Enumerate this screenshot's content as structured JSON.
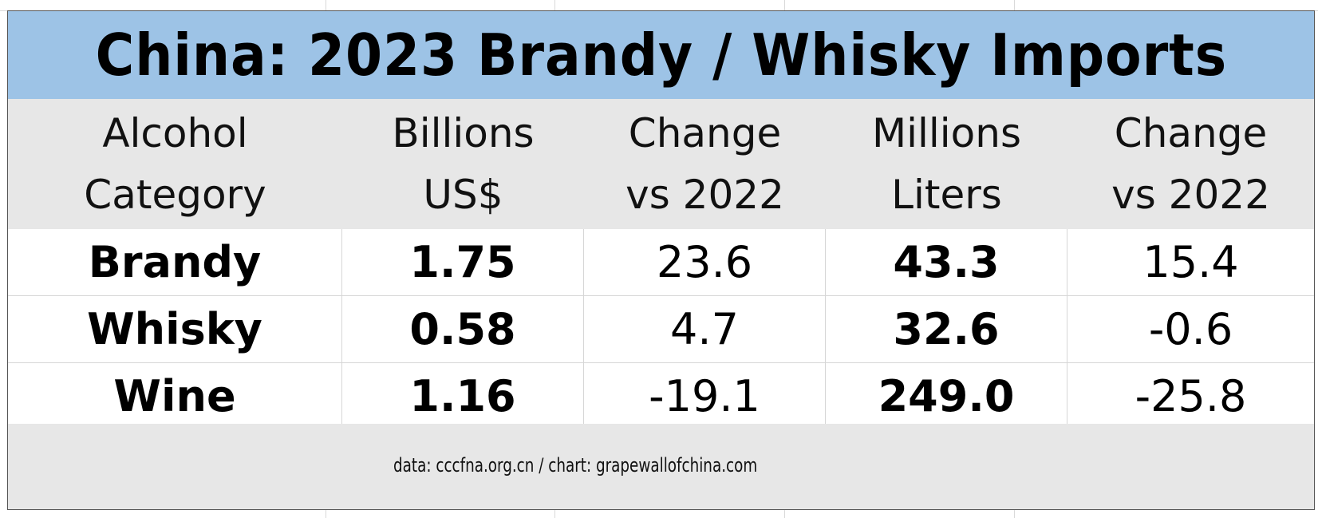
{
  "title": "China: 2023 Brandy / Whisky Imports",
  "colors": {
    "title_bg": "#9dc3e6",
    "header_bg": "#e7e7e7",
    "footer_bg": "#e7e7e7"
  },
  "headers": [
    {
      "line1": "Alcohol",
      "line2": "Category"
    },
    {
      "line1": "Billions",
      "line2": "US$"
    },
    {
      "line1": "Change",
      "line2": "vs 2022"
    },
    {
      "line1": "Millions",
      "line2": "Liters"
    },
    {
      "line1": "Change",
      "line2": "vs 2022"
    }
  ],
  "rows": [
    {
      "category": "Brandy",
      "usd": "1.75",
      "usd_change": "23.6",
      "liters": "43.3",
      "liters_change": "15.4"
    },
    {
      "category": "Whisky",
      "usd": "0.58",
      "usd_change": "4.7",
      "liters": "32.6",
      "liters_change": "-0.6"
    },
    {
      "category": "Wine",
      "usd": "1.16",
      "usd_change": "-19.1",
      "liters": "249.0",
      "liters_change": "-25.8"
    }
  ],
  "source": "data: cccfna.org.cn / chart: grapewallofchina.com",
  "chart_data": {
    "type": "table",
    "title": "China: 2023 Brandy / Whisky Imports",
    "columns": [
      "Alcohol Category",
      "Billions US$",
      "Change vs 2022",
      "Millions Liters",
      "Change vs 2022"
    ],
    "rows": [
      [
        "Brandy",
        1.75,
        23.6,
        43.3,
        15.4
      ],
      [
        "Whisky",
        0.58,
        4.7,
        32.6,
        -0.6
      ],
      [
        "Wine",
        1.16,
        -19.1,
        249.0,
        -25.8
      ]
    ]
  }
}
